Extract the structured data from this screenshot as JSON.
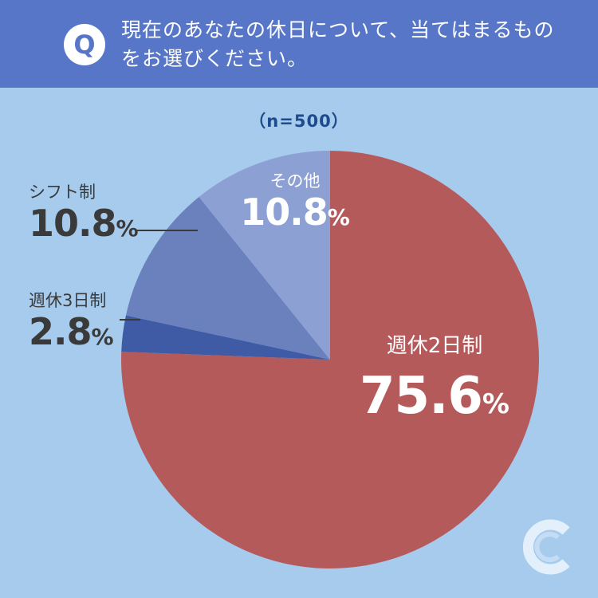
{
  "question": {
    "badge": "Q",
    "text": "現在のあなたの休日について、当てはまるものをお選びください。"
  },
  "sample_size": "（n=500）",
  "colors": {
    "header": "#5776c7",
    "background": "#a7cbec",
    "slice_2day": "#b55a5b",
    "slice_3day": "#3f5ba6",
    "slice_shift": "#6a81bd",
    "slice_other": "#8da0d4"
  },
  "chart_data": {
    "type": "pie",
    "title": "現在のあなたの休日について、当てはまるものをお選びください。",
    "slices": [
      {
        "label": "週休2日制",
        "value": 75.6,
        "display": "75.6"
      },
      {
        "label": "週休3日制",
        "value": 2.8,
        "display": "2.8"
      },
      {
        "label": "シフト制",
        "value": 10.8,
        "display": "10.8"
      },
      {
        "label": "その他",
        "value": 10.8,
        "display": "10.8"
      }
    ],
    "unit": "%"
  },
  "logo": {
    "icon": "brand-c-logo-icon"
  }
}
